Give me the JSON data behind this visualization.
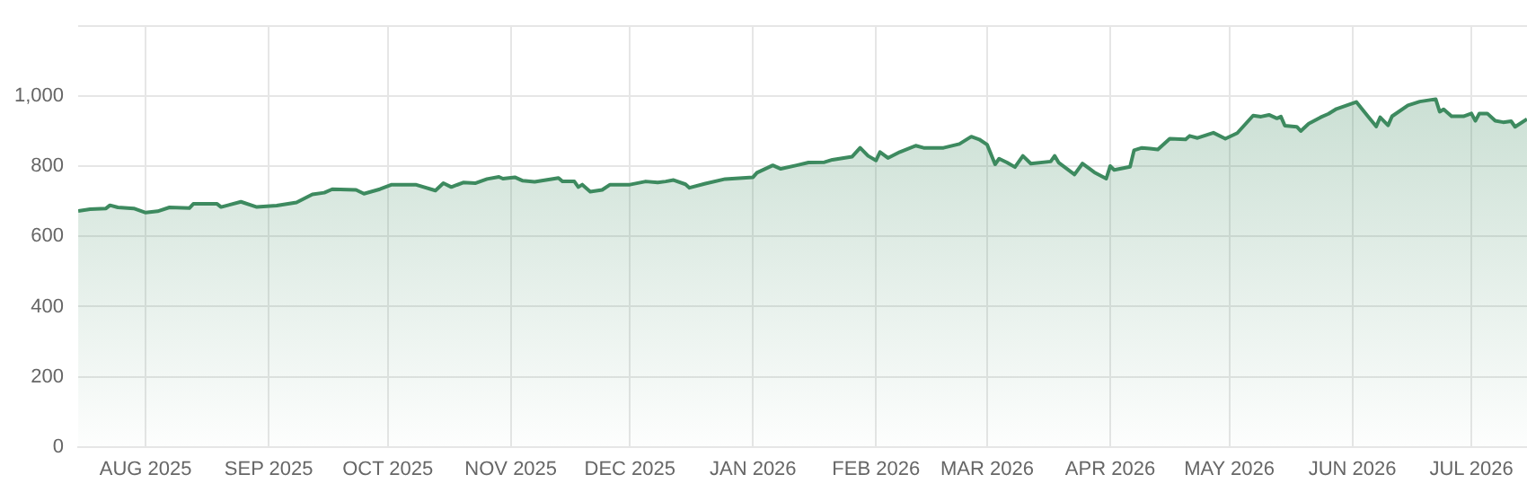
{
  "chart_data": {
    "type": "area",
    "x": [
      "2025-07-15",
      "2025-07-18",
      "2025-07-22",
      "2025-07-23",
      "2025-07-25",
      "2025-07-29",
      "2025-08-01",
      "2025-08-04",
      "2025-08-07",
      "2025-08-12",
      "2025-08-13",
      "2025-08-19",
      "2025-08-20",
      "2025-08-25",
      "2025-08-29",
      "2025-09-03",
      "2025-09-08",
      "2025-09-12",
      "2025-09-15",
      "2025-09-17",
      "2025-09-23",
      "2025-09-25",
      "2025-09-29",
      "2025-10-02",
      "2025-10-08",
      "2025-10-13",
      "2025-10-15",
      "2025-10-17",
      "2025-10-20",
      "2025-10-23",
      "2025-10-26",
      "2025-10-29",
      "2025-10-30",
      "2025-11-02",
      "2025-11-04",
      "2025-11-07",
      "2025-11-13",
      "2025-11-14",
      "2025-11-17",
      "2025-11-18",
      "2025-11-19",
      "2025-11-21",
      "2025-11-24",
      "2025-11-26",
      "2025-12-01",
      "2025-12-05",
      "2025-12-08",
      "2025-12-10",
      "2025-12-12",
      "2025-12-15",
      "2025-12-16",
      "2025-12-20",
      "2025-12-25",
      "2026-01-01",
      "2026-01-02",
      "2026-01-06",
      "2026-01-08",
      "2026-01-12",
      "2026-01-15",
      "2026-01-19",
      "2026-01-21",
      "2026-01-26",
      "2026-01-28",
      "2026-01-30",
      "2026-02-01",
      "2026-02-02",
      "2026-02-04",
      "2026-02-07",
      "2026-02-11",
      "2026-02-13",
      "2026-02-18",
      "2026-02-22",
      "2026-02-25",
      "2026-02-27",
      "2026-03-01",
      "2026-03-03",
      "2026-03-04",
      "2026-03-06",
      "2026-03-08",
      "2026-03-10",
      "2026-03-12",
      "2026-03-17",
      "2026-03-18",
      "2026-03-19",
      "2026-03-23",
      "2026-03-25",
      "2026-03-28",
      "2026-03-31",
      "2026-04-01",
      "2026-04-02",
      "2026-04-06",
      "2026-04-07",
      "2026-04-09",
      "2026-04-11",
      "2026-04-13",
      "2026-04-16",
      "2026-04-20",
      "2026-04-21",
      "2026-04-23",
      "2026-04-27",
      "2026-04-30",
      "2026-05-03",
      "2026-05-07",
      "2026-05-09",
      "2026-05-11",
      "2026-05-13",
      "2026-05-14",
      "2026-05-15",
      "2026-05-18",
      "2026-05-19",
      "2026-05-21",
      "2026-05-24",
      "2026-05-26",
      "2026-05-28",
      "2026-06-02",
      "2026-06-04",
      "2026-06-07",
      "2026-06-08",
      "2026-06-10",
      "2026-06-11",
      "2026-06-15",
      "2026-06-18",
      "2026-06-22",
      "2026-06-23",
      "2026-06-24",
      "2026-06-26",
      "2026-06-29",
      "2026-07-01",
      "2026-07-02",
      "2026-07-03",
      "2026-07-05",
      "2026-07-07",
      "2026-07-09",
      "2026-07-11",
      "2026-07-12",
      "2026-07-15"
    ],
    "series": [
      {
        "color": "#3d8a5f",
        "values": [
          673,
          678,
          680,
          689,
          683,
          680,
          668,
          672,
          683,
          681,
          693,
          693,
          684,
          699,
          684,
          688,
          697,
          720,
          725,
          735,
          733,
          722,
          735,
          748,
          748,
          731,
          752,
          741,
          754,
          752,
          764,
          770,
          765,
          769,
          759,
          756,
          767,
          757,
          757,
          741,
          748,
          728,
          733,
          748,
          748,
          757,
          754,
          757,
          761,
          749,
          739,
          751,
          764,
          769,
          782,
          803,
          793,
          803,
          811,
          812,
          819,
          828,
          853,
          830,
          817,
          841,
          824,
          841,
          859,
          853,
          853,
          864,
          885,
          877,
          862,
          806,
          822,
          811,
          798,
          830,
          808,
          814,
          830,
          811,
          777,
          808,
          783,
          765,
          801,
          790,
          799,
          846,
          853,
          851,
          848,
          879,
          877,
          887,
          881,
          896,
          879,
          895,
          945,
          942,
          947,
          937,
          942,
          916,
          913,
          901,
          922,
          940,
          950,
          964,
          984,
          956,
          914,
          940,
          917,
          943,
          974,
          985,
          992,
          956,
          963,
          943,
          943,
          951,
          930,
          951,
          951,
          930,
          926,
          929,
          913,
          935
        ]
      }
    ],
    "xlim": [
      "2025-07-15",
      "2026-07-15"
    ],
    "xticks": [
      {
        "value": "2025-08-01",
        "label": "AUG 2025"
      },
      {
        "value": "2025-09-01",
        "label": "SEP 2025"
      },
      {
        "value": "2025-10-01",
        "label": "OCT 2025"
      },
      {
        "value": "2025-11-01",
        "label": "NOV 2025"
      },
      {
        "value": "2025-12-01",
        "label": "DEC 2025"
      },
      {
        "value": "2026-01-01",
        "label": "JAN 2026"
      },
      {
        "value": "2026-02-01",
        "label": "FEB 2026"
      },
      {
        "value": "2026-03-01",
        "label": "MAR 2026"
      },
      {
        "value": "2026-04-01",
        "label": "APR 2026"
      },
      {
        "value": "2026-05-01",
        "label": "MAY 2026"
      },
      {
        "value": "2026-06-01",
        "label": "JUN 2026"
      },
      {
        "value": "2026-07-01",
        "label": "JUL 2026"
      }
    ],
    "ylim": [
      0,
      1200
    ],
    "yticks": [
      0,
      200,
      400,
      600,
      800,
      {
        "value": 1000,
        "label": "1,000"
      },
      {
        "value": 1200,
        "label": null
      }
    ],
    "grid": true,
    "legend": false,
    "marker": "none",
    "line_style": "solid"
  }
}
